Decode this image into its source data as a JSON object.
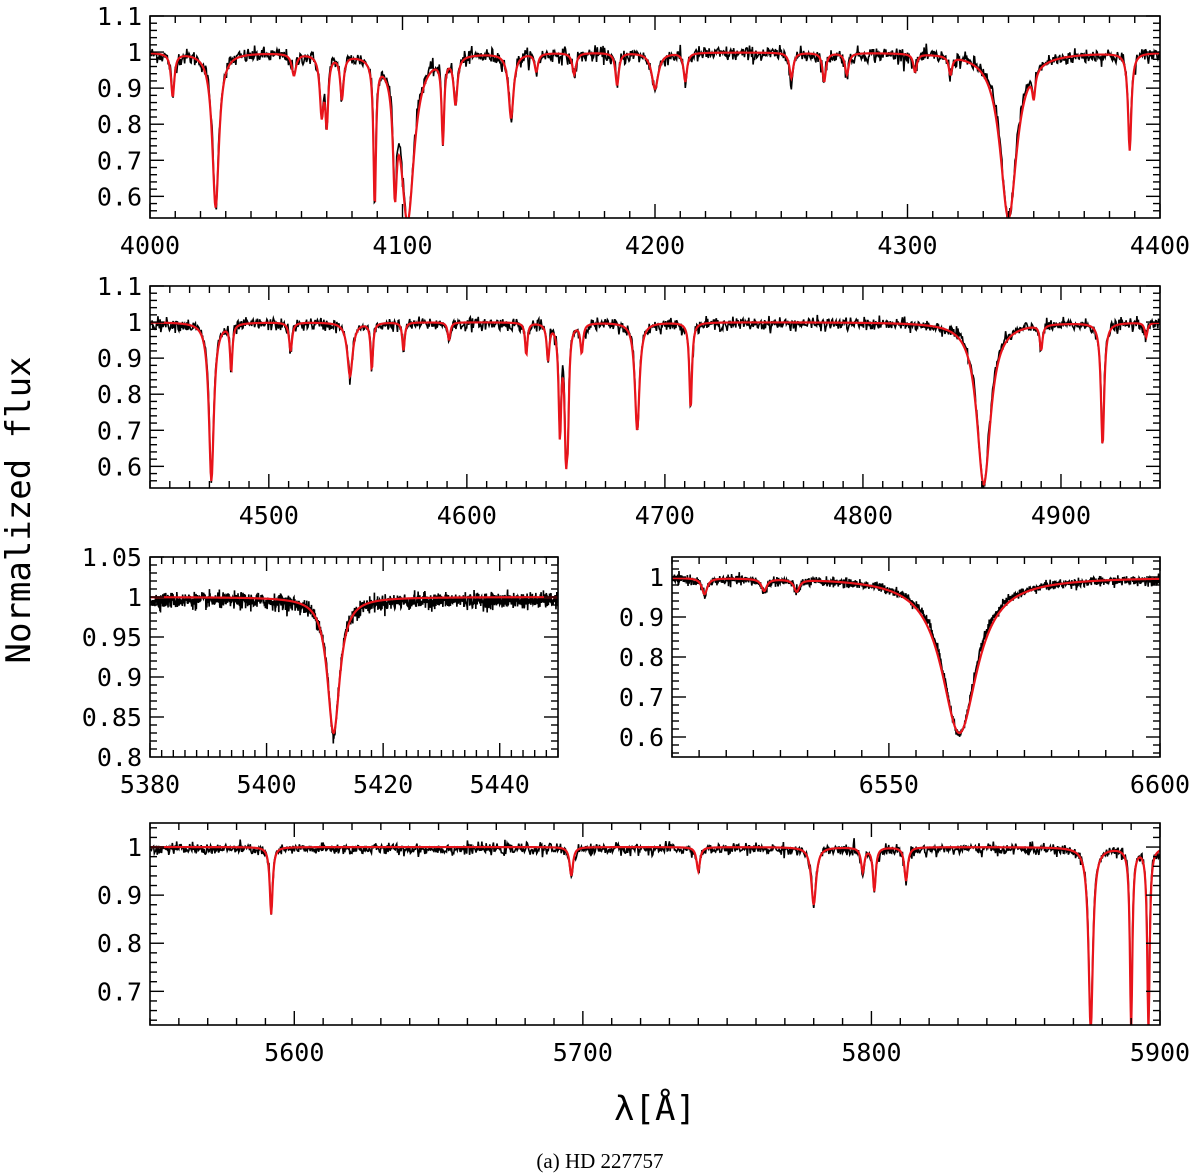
{
  "figure": {
    "ylabel": "Normalized flux",
    "xlabel": "λ[Å]",
    "caption": "(a)  HD 227757"
  },
  "colors": {
    "observed": "#000000",
    "model": "#e8141b",
    "frame": "#000000"
  },
  "chart_data": [
    {
      "type": "line",
      "panel": "top",
      "xlim": [
        4000,
        4400
      ],
      "ylim": [
        0.54,
        1.1
      ],
      "xticks": [
        4000,
        4100,
        4200,
        4300,
        4400
      ],
      "yticks": [
        0.6,
        0.7,
        0.8,
        0.9,
        1,
        1.1
      ],
      "ytick_labels": [
        "0.6",
        "0.7",
        "0.8",
        "0.9",
        "1",
        "1.1"
      ],
      "noise": 0.011,
      "lines": [
        {
          "x": 4009,
          "depth": 0.12,
          "width": 0.8
        },
        {
          "x": 4026,
          "depth": 0.43,
          "width": 1.6
        },
        {
          "x": 4057,
          "depth": 0.06,
          "width": 1.0
        },
        {
          "x": 4068,
          "depth": 0.16,
          "width": 0.9
        },
        {
          "x": 4070,
          "depth": 0.18,
          "width": 0.7
        },
        {
          "x": 4076,
          "depth": 0.12,
          "width": 0.8
        },
        {
          "x": 4089,
          "depth": 0.4,
          "width": 0.6
        },
        {
          "x": 4097,
          "depth": 0.28,
          "width": 0.9
        },
        {
          "x": 4102,
          "depth": 0.46,
          "width": 3.2
        },
        {
          "x": 4116,
          "depth": 0.23,
          "width": 0.6
        },
        {
          "x": 4121,
          "depth": 0.13,
          "width": 0.9
        },
        {
          "x": 4143,
          "depth": 0.18,
          "width": 1.2
        },
        {
          "x": 4153,
          "depth": 0.05,
          "width": 0.8
        },
        {
          "x": 4168,
          "depth": 0.06,
          "width": 0.9
        },
        {
          "x": 4185,
          "depth": 0.09,
          "width": 0.8
        },
        {
          "x": 4200,
          "depth": 0.1,
          "width": 1.6
        },
        {
          "x": 4212,
          "depth": 0.08,
          "width": 0.8
        },
        {
          "x": 4254,
          "depth": 0.07,
          "width": 0.9
        },
        {
          "x": 4267,
          "depth": 0.08,
          "width": 0.8
        },
        {
          "x": 4276,
          "depth": 0.06,
          "width": 0.9
        },
        {
          "x": 4303,
          "depth": 0.05,
          "width": 0.8
        },
        {
          "x": 4317,
          "depth": 0.05,
          "width": 0.8
        },
        {
          "x": 4340,
          "depth": 0.46,
          "width": 4.0
        },
        {
          "x": 4350,
          "depth": 0.07,
          "width": 0.7
        },
        {
          "x": 4388,
          "depth": 0.27,
          "width": 0.8
        }
      ]
    },
    {
      "type": "line",
      "panel": "second",
      "xlim": [
        4440,
        4950
      ],
      "ylim": [
        0.54,
        1.1
      ],
      "xticks": [
        4500,
        4600,
        4700,
        4800,
        4900
      ],
      "yticks": [
        0.6,
        0.7,
        0.8,
        0.9,
        1,
        1.1
      ],
      "ytick_labels": [
        "0.6",
        "0.7",
        "0.8",
        "0.9",
        "1",
        "1.1"
      ],
      "noise": 0.009,
      "lines": [
        {
          "x": 4471,
          "depth": 0.44,
          "width": 1.5
        },
        {
          "x": 4481,
          "depth": 0.13,
          "width": 0.7
        },
        {
          "x": 4511,
          "depth": 0.08,
          "width": 0.9
        },
        {
          "x": 4541,
          "depth": 0.15,
          "width": 1.6
        },
        {
          "x": 4552,
          "depth": 0.13,
          "width": 0.7
        },
        {
          "x": 4568,
          "depth": 0.08,
          "width": 0.7
        },
        {
          "x": 4591,
          "depth": 0.05,
          "width": 0.8
        },
        {
          "x": 4630,
          "depth": 0.09,
          "width": 0.7
        },
        {
          "x": 4641,
          "depth": 0.1,
          "width": 0.8
        },
        {
          "x": 4647,
          "depth": 0.3,
          "width": 0.8
        },
        {
          "x": 4650,
          "depth": 0.31,
          "width": 0.8
        },
        {
          "x": 4651,
          "depth": 0.22,
          "width": 0.7
        },
        {
          "x": 4658,
          "depth": 0.08,
          "width": 0.8
        },
        {
          "x": 4686,
          "depth": 0.3,
          "width": 1.4
        },
        {
          "x": 4713,
          "depth": 0.24,
          "width": 0.8
        },
        {
          "x": 4861,
          "depth": 0.45,
          "width": 4.2
        },
        {
          "x": 4890,
          "depth": 0.07,
          "width": 0.8
        },
        {
          "x": 4921,
          "depth": 0.34,
          "width": 1.0
        },
        {
          "x": 4943,
          "depth": 0.04,
          "width": 0.8
        }
      ]
    },
    {
      "type": "line",
      "panel": "left-middle",
      "xlim": [
        5380,
        5450
      ],
      "ylim": [
        0.8,
        1.05
      ],
      "xticks": [
        5380,
        5400,
        5420,
        5440
      ],
      "yticks": [
        0.8,
        0.85,
        0.9,
        0.95,
        1,
        1.05
      ],
      "ytick_labels": [
        "0.8",
        "0.85",
        "0.9",
        "0.95",
        "1",
        "1.05"
      ],
      "noise": 0.005,
      "lines": [
        {
          "x": 5411.5,
          "depth": 0.17,
          "width": 1.3
        }
      ]
    },
    {
      "type": "line",
      "panel": "right-middle",
      "xlim": [
        6510,
        6600
      ],
      "ylim": [
        0.55,
        1.05
      ],
      "xticks": [
        6550,
        6600
      ],
      "yticks": [
        0.6,
        0.7,
        0.8,
        0.9,
        1
      ],
      "ytick_labels": [
        "0.6",
        "0.7",
        "0.8",
        "0.9",
        "1"
      ],
      "noise": 0.006,
      "lines": [
        {
          "x": 6563,
          "depth": 0.39,
          "width": 4.0
        },
        {
          "x": 6516,
          "depth": 0.04,
          "width": 0.6
        },
        {
          "x": 6527,
          "depth": 0.03,
          "width": 0.6
        },
        {
          "x": 6533,
          "depth": 0.03,
          "width": 0.6
        }
      ]
    },
    {
      "type": "line",
      "panel": "bottom",
      "xlim": [
        5550,
        5900
      ],
      "ylim": [
        0.63,
        1.05
      ],
      "xticks": [
        5600,
        5700,
        5800,
        5900
      ],
      "yticks": [
        0.7,
        0.8,
        0.9,
        1
      ],
      "ytick_labels": [
        "0.7",
        "0.8",
        "0.9",
        "1"
      ],
      "noise": 0.006,
      "lines": [
        {
          "x": 5592,
          "depth": 0.14,
          "width": 0.6
        },
        {
          "x": 5696,
          "depth": 0.06,
          "width": 0.7
        },
        {
          "x": 5740,
          "depth": 0.05,
          "width": 0.7
        },
        {
          "x": 5780,
          "depth": 0.12,
          "width": 1.0
        },
        {
          "x": 5797,
          "depth": 0.05,
          "width": 0.7
        },
        {
          "x": 5801,
          "depth": 0.09,
          "width": 0.6
        },
        {
          "x": 5812,
          "depth": 0.07,
          "width": 0.7
        },
        {
          "x": 5876,
          "depth": 0.38,
          "width": 0.9
        },
        {
          "x": 5890,
          "depth": 0.38,
          "width": 0.5
        },
        {
          "x": 5896,
          "depth": 0.38,
          "width": 0.5
        }
      ]
    }
  ]
}
